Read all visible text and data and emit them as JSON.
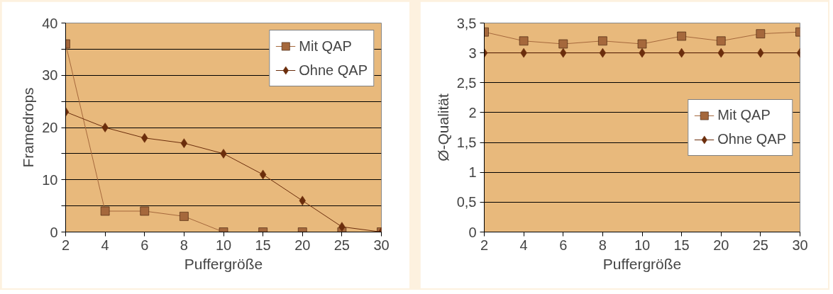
{
  "chart_data": [
    {
      "type": "line",
      "xlabel": "Puffergröße",
      "ylabel": "Framedrops",
      "categories": [
        "2",
        "4",
        "6",
        "8",
        "10",
        "15",
        "20",
        "25",
        "30"
      ],
      "series": [
        {
          "name": "Mit QAP",
          "color": "#a5683c",
          "marker": "square",
          "values": [
            36,
            4,
            4,
            3,
            0,
            0,
            0,
            0,
            0
          ]
        },
        {
          "name": "Ohne QAP",
          "color": "#6b2d0c",
          "marker": "diamond",
          "values": [
            23,
            20,
            18,
            17,
            15,
            11,
            6,
            1,
            0
          ]
        }
      ],
      "ylim": [
        0,
        40
      ],
      "yticks": [
        0,
        {
          "value": 5,
          "label": null
        },
        10,
        {
          "value": 15,
          "label": null
        },
        20,
        {
          "value": 25,
          "label": null
        },
        30,
        {
          "value": 35,
          "label": null
        },
        40
      ],
      "grid": "y",
      "legend": "top right"
    },
    {
      "type": "line",
      "xlabel": "Puffergröße",
      "ylabel": "Ø-Qualität",
      "categories": [
        "2",
        "4",
        "6",
        "8",
        "10",
        "15",
        "20",
        "25",
        "30"
      ],
      "series": [
        {
          "name": "Mit QAP",
          "color": "#a5683c",
          "marker": "square",
          "values": [
            3.35,
            3.2,
            3.15,
            3.2,
            3.15,
            3.28,
            3.2,
            3.32,
            3.35
          ]
        },
        {
          "name": "Ohne QAP",
          "color": "#6b2d0c",
          "marker": "diamond",
          "values": [
            3,
            3,
            3,
            3,
            3,
            3,
            3,
            3,
            3
          ]
        }
      ],
      "ylim": [
        0,
        3.5
      ],
      "yticks": [
        0,
        {
          "value": 0.5,
          "label": "0,5"
        },
        1,
        {
          "value": 1.5,
          "label": "1,5"
        },
        2,
        {
          "value": 2.5,
          "label": "2,5"
        },
        3,
        {
          "value": 3.5,
          "label": "3,5"
        }
      ],
      "grid": "y",
      "legend": "right"
    }
  ]
}
